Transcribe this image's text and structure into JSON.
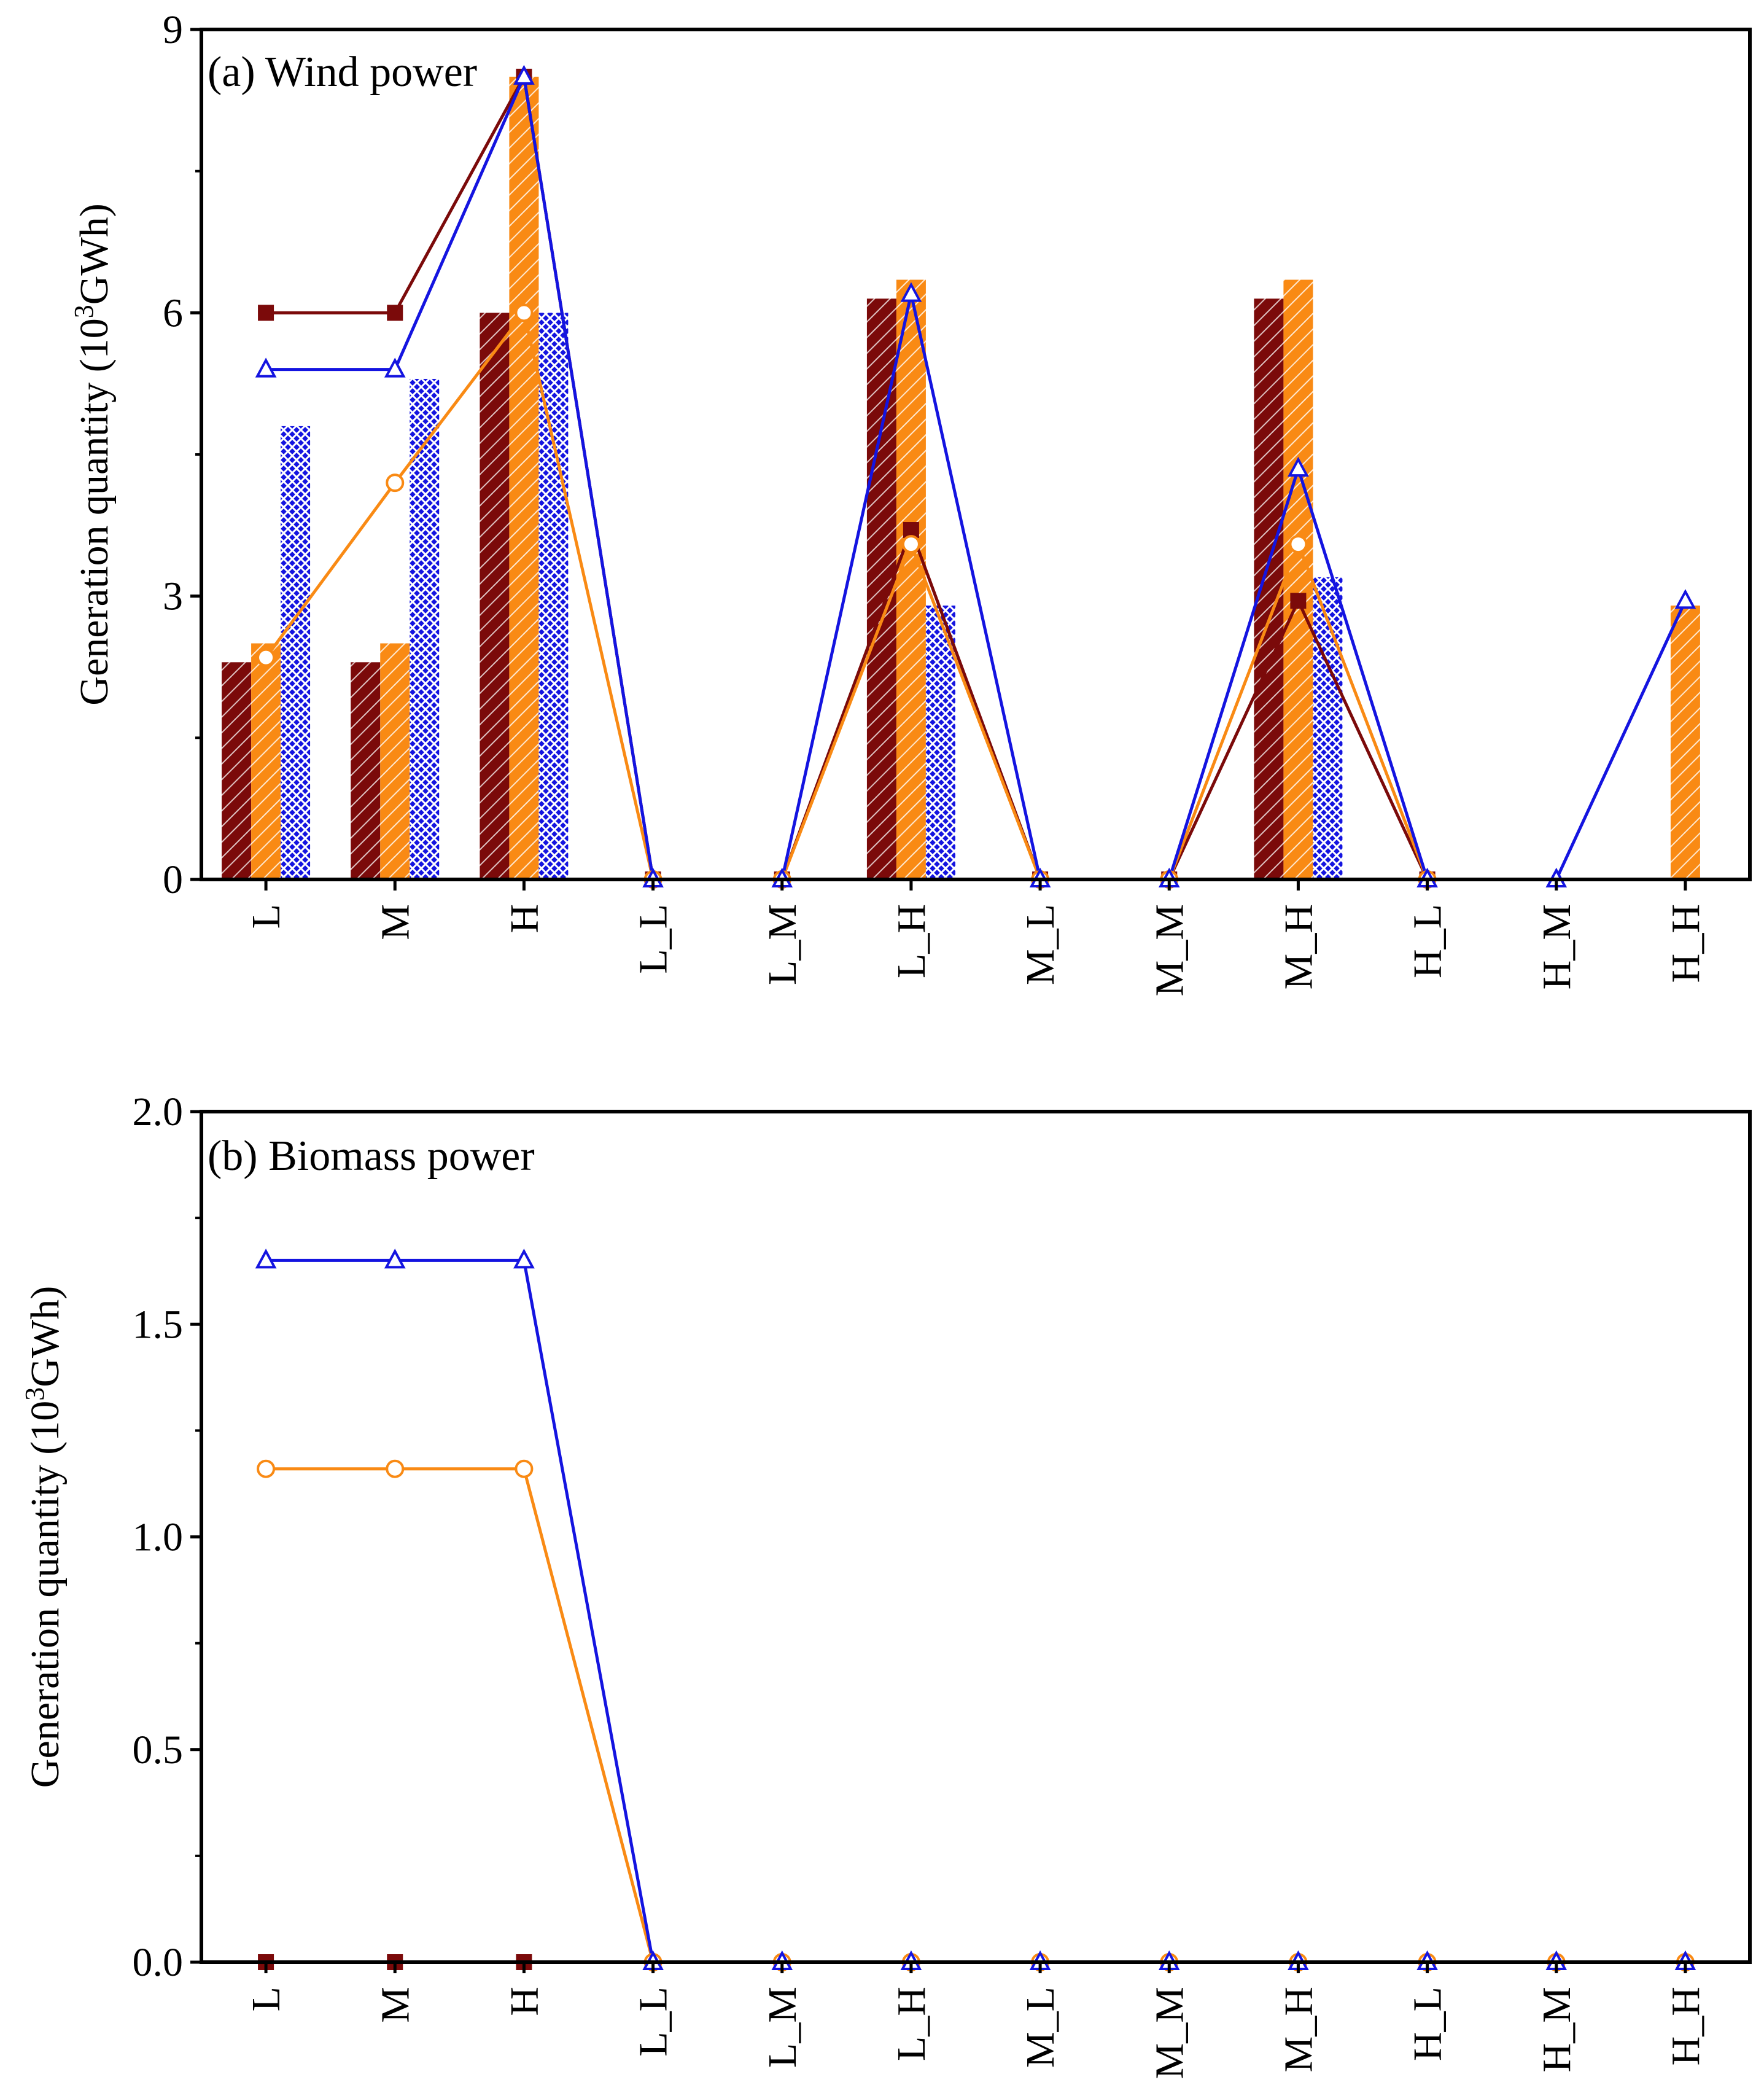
{
  "colors": {
    "series_a": "#7b0a0a",
    "series_b": "#f98a14",
    "series_c": "#1414e0",
    "axis": "#000000"
  },
  "chart_data": [
    {
      "type": "bar",
      "title": "(a) Wind power",
      "ylabel": "Generation quantity (10",
      "ylabel_sup": "3",
      "ylabel_tail": "GWh)",
      "ylim": [
        0,
        9
      ],
      "yticks": [
        0,
        3,
        6,
        9
      ],
      "ytick_labels": [
        "0",
        "3",
        "6",
        "9"
      ],
      "categories": [
        "L",
        "M",
        "H",
        "L_L",
        "L_M",
        "L_H",
        "M_L",
        "M_M",
        "M_H",
        "H_L",
        "H_M",
        "H_H"
      ],
      "bars": [
        {
          "name": "dark red hatched bars",
          "color": "#7b0a0a",
          "values": [
            2.3,
            2.3,
            6.0,
            0,
            0,
            6.15,
            0,
            0,
            6.15,
            0,
            0,
            0
          ]
        },
        {
          "name": "orange hatched bars",
          "color": "#f98a14",
          "values": [
            2.5,
            2.5,
            8.5,
            0,
            0,
            6.35,
            0,
            0,
            6.35,
            0,
            0,
            2.9
          ]
        },
        {
          "name": "blue crosshatched bars",
          "color": "#1414e0",
          "values": [
            4.8,
            5.3,
            6.0,
            0,
            0,
            2.9,
            0,
            0,
            3.2,
            0,
            0,
            0
          ]
        }
      ],
      "lines": [
        {
          "name": "dark red square line",
          "color": "#7b0a0a",
          "marker": "square",
          "values": [
            6.0,
            6.0,
            8.5,
            0,
            0,
            3.7,
            0,
            0,
            2.95,
            0,
            null,
            null
          ]
        },
        {
          "name": "orange circle line",
          "color": "#f98a14",
          "marker": "circle",
          "values": [
            2.35,
            4.2,
            6.0,
            0,
            0,
            3.55,
            0,
            0,
            3.55,
            0,
            null,
            null
          ]
        },
        {
          "name": "blue triangle line",
          "color": "#1414e0",
          "marker": "triangle",
          "values": [
            5.4,
            5.4,
            8.5,
            0,
            0,
            6.2,
            0,
            0,
            4.35,
            0,
            0,
            2.95
          ]
        }
      ]
    },
    {
      "type": "line",
      "title": "(b) Biomass power",
      "ylabel": "Generation quantity (10",
      "ylabel_sup": "3",
      "ylabel_tail": "GWh)",
      "ylim": [
        0,
        2.0
      ],
      "yticks": [
        0,
        0.5,
        1.0,
        1.5,
        2.0
      ],
      "ytick_labels": [
        "0.0",
        "0.5",
        "1.0",
        "1.5",
        "2.0"
      ],
      "categories": [
        "L",
        "M",
        "H",
        "L_L",
        "L_M",
        "L_H",
        "M_L",
        "M_M",
        "M_H",
        "H_L",
        "H_M",
        "H_H"
      ],
      "bars": [],
      "lines": [
        {
          "name": "dark red square line",
          "color": "#7b0a0a",
          "marker": "square",
          "values": [
            0,
            0,
            0,
            null,
            null,
            null,
            null,
            null,
            null,
            null,
            null,
            null
          ]
        },
        {
          "name": "orange circle line",
          "color": "#f98a14",
          "marker": "circle",
          "values": [
            1.16,
            1.16,
            1.16,
            0,
            0,
            0,
            0,
            0,
            0,
            0,
            0,
            0
          ]
        },
        {
          "name": "blue triangle line",
          "color": "#1414e0",
          "marker": "triangle",
          "values": [
            1.65,
            1.65,
            1.65,
            0,
            0,
            0,
            0,
            0,
            0,
            0,
            0,
            0
          ]
        }
      ]
    }
  ]
}
